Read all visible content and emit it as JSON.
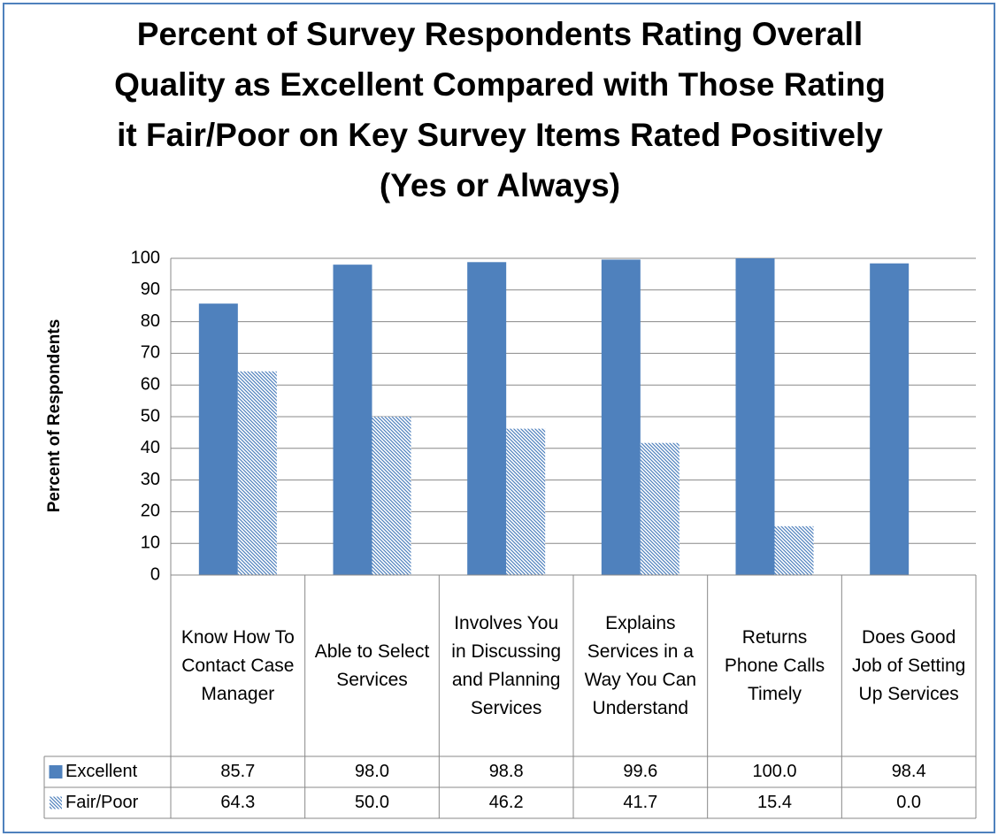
{
  "chart_data": {
    "type": "bar",
    "title": "Percent of Survey Respondents Rating Overall Quality as Excellent Compared with Those Rating it Fair/Poor on Key Survey Items Rated Positively (Yes or Always)",
    "y_label": "Percent of Respondents",
    "categories": [
      "Know How To Contact Case Manager",
      "Able to Select Services",
      "Involves You in Discussing and Planning Services",
      "Explains Services in a Way You Can Understand",
      "Returns Phone Calls Timely",
      "Does Good Job of Setting Up Services"
    ],
    "series": [
      {
        "name": "Excellent",
        "color": "#4f81bd",
        "fill": "solid",
        "values": [
          85.7,
          98,
          98.8,
          99.6,
          100,
          98.4
        ],
        "value_labels": [
          "85.7",
          "98.0",
          "98.8",
          "99.6",
          "100.0",
          "98.4"
        ]
      },
      {
        "name": "Fair/Poor",
        "color": "#4f81bd",
        "fill": "hatch",
        "values": [
          64.3,
          50,
          46.2,
          41.7,
          15.4,
          0
        ],
        "value_labels": [
          "64.3",
          "50.0",
          "46.2",
          "41.7",
          "15.4",
          "0.0"
        ]
      }
    ],
    "ylim": [
      0,
      100
    ],
    "yticks": [
      0,
      10,
      20,
      30,
      40,
      50,
      60,
      70,
      80,
      90,
      100
    ],
    "grid": true,
    "data_table": true
  }
}
